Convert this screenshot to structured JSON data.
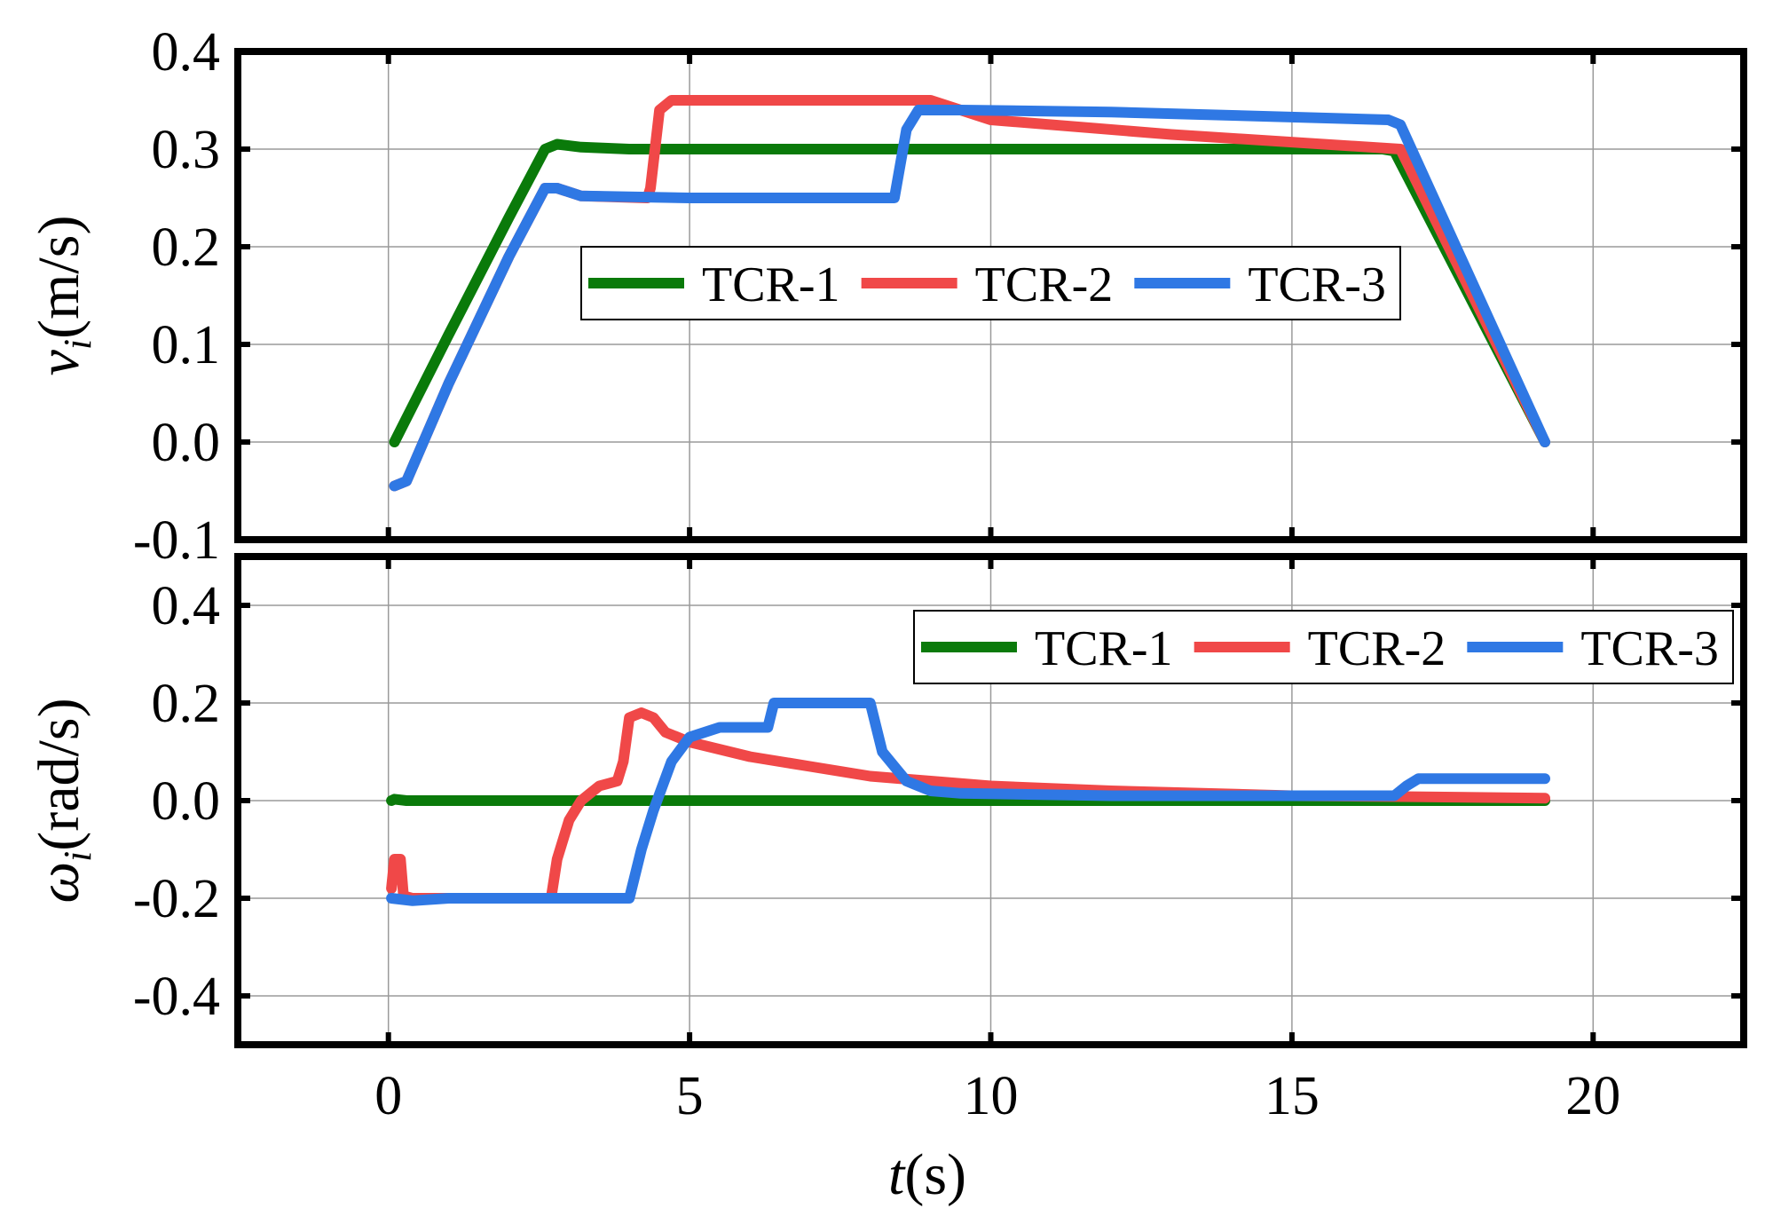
{
  "colors": {
    "TCR-1": "#0a7a0a",
    "TCR-2": "#f04848",
    "TCR-3": "#2f78e4"
  },
  "chart_data": [
    {
      "type": "line",
      "ylabel_main": "v",
      "ylabel_sub": "i",
      "ylabel_unit": "(m/s)",
      "xlim": [
        -2.5,
        22.5
      ],
      "ylim": [
        -0.1,
        0.4
      ],
      "xticks": [
        0,
        5,
        10,
        15,
        20
      ],
      "xtick_labels": [
        "",
        "",
        "",
        "",
        ""
      ],
      "yticks": [
        -0.1,
        0.0,
        0.1,
        0.2,
        0.3,
        0.4
      ],
      "ytick_labels": [
        "-0.1",
        "0.0",
        "0.1",
        "0.2",
        "0.3",
        "0.4"
      ],
      "grid": true,
      "legend_position": "center",
      "series": [
        {
          "name": "TCR-1",
          "color": "#0a7a0a",
          "x": [
            0.1,
            1.0,
            2.0,
            2.6,
            2.8,
            3.2,
            4.0,
            10.0,
            16.5,
            16.7,
            19.2
          ],
          "y": [
            0.0,
            0.11,
            0.23,
            0.3,
            0.305,
            0.302,
            0.3,
            0.3,
            0.3,
            0.298,
            0.0
          ]
        },
        {
          "name": "TCR-2",
          "color": "#f04848",
          "x": [
            0.1,
            0.3,
            1.0,
            2.0,
            2.6,
            2.8,
            3.2,
            4.3,
            4.35,
            4.5,
            4.7,
            6.0,
            8.0,
            9.0,
            10.0,
            13.0,
            16.8,
            19.2
          ],
          "y": [
            -0.045,
            -0.04,
            0.06,
            0.19,
            0.26,
            0.26,
            0.252,
            0.25,
            0.26,
            0.34,
            0.35,
            0.35,
            0.35,
            0.35,
            0.33,
            0.315,
            0.3,
            0.0
          ]
        },
        {
          "name": "TCR-3",
          "color": "#2f78e4",
          "x": [
            0.1,
            0.3,
            1.0,
            2.0,
            2.6,
            2.8,
            3.2,
            5.0,
            8.4,
            8.6,
            8.8,
            9.5,
            12.0,
            16.6,
            16.8,
            19.2
          ],
          "y": [
            -0.045,
            -0.04,
            0.06,
            0.19,
            0.26,
            0.26,
            0.252,
            0.25,
            0.25,
            0.32,
            0.34,
            0.34,
            0.338,
            0.33,
            0.325,
            0.0
          ]
        }
      ]
    },
    {
      "type": "line",
      "ylabel_main": "ω",
      "ylabel_sub": "i",
      "ylabel_unit": "(rad/s)",
      "xlabel_main": "t",
      "xlabel_unit": "(s)",
      "xlim": [
        -2.5,
        22.5
      ],
      "ylim": [
        -0.5,
        0.5
      ],
      "xticks": [
        0,
        5,
        10,
        15,
        20
      ],
      "xtick_labels": [
        "0",
        "5",
        "10",
        "15",
        "20"
      ],
      "yticks": [
        -0.4,
        -0.2,
        0.0,
        0.2,
        0.4
      ],
      "ytick_labels": [
        "-0.4",
        "-0.2",
        "0.0",
        "0.2",
        "0.4"
      ],
      "grid": true,
      "legend_position": "top-right",
      "series": [
        {
          "name": "TCR-1",
          "color": "#0a7a0a",
          "x": [
            0.05,
            0.1,
            0.3,
            19.2
          ],
          "y": [
            0.0,
            0.003,
            0.0,
            0.0
          ]
        },
        {
          "name": "TCR-2",
          "color": "#f04848",
          "x": [
            0.05,
            0.1,
            0.2,
            0.25,
            0.4,
            1.0,
            2.7,
            2.8,
            3.0,
            3.2,
            3.5,
            3.8,
            3.9,
            4.0,
            4.2,
            4.4,
            4.6,
            5.0,
            6.0,
            7.0,
            8.0,
            9.0,
            10.0,
            12.0,
            15.0,
            17.0,
            19.2
          ],
          "y": [
            -0.18,
            -0.12,
            -0.12,
            -0.195,
            -0.2,
            -0.2,
            -0.2,
            -0.12,
            -0.04,
            0.0,
            0.03,
            0.04,
            0.08,
            0.17,
            0.18,
            0.17,
            0.14,
            0.12,
            0.09,
            0.07,
            0.05,
            0.04,
            0.03,
            0.02,
            0.01,
            0.008,
            0.005
          ]
        },
        {
          "name": "TCR-3",
          "color": "#2f78e4",
          "x": [
            0.05,
            0.4,
            1.0,
            3.8,
            4.0,
            4.2,
            4.4,
            4.7,
            5.0,
            5.5,
            6.0,
            6.3,
            6.4,
            6.6,
            7.0,
            7.8,
            8.0,
            8.2,
            8.6,
            9.0,
            9.5,
            12.0,
            16.7,
            16.9,
            17.1,
            17.5,
            19.2
          ],
          "y": [
            -0.2,
            -0.205,
            -0.2,
            -0.2,
            -0.2,
            -0.1,
            -0.02,
            0.08,
            0.13,
            0.15,
            0.15,
            0.15,
            0.2,
            0.2,
            0.2,
            0.2,
            0.2,
            0.1,
            0.04,
            0.02,
            0.015,
            0.01,
            0.01,
            0.03,
            0.045,
            0.045,
            0.045
          ]
        }
      ]
    }
  ]
}
